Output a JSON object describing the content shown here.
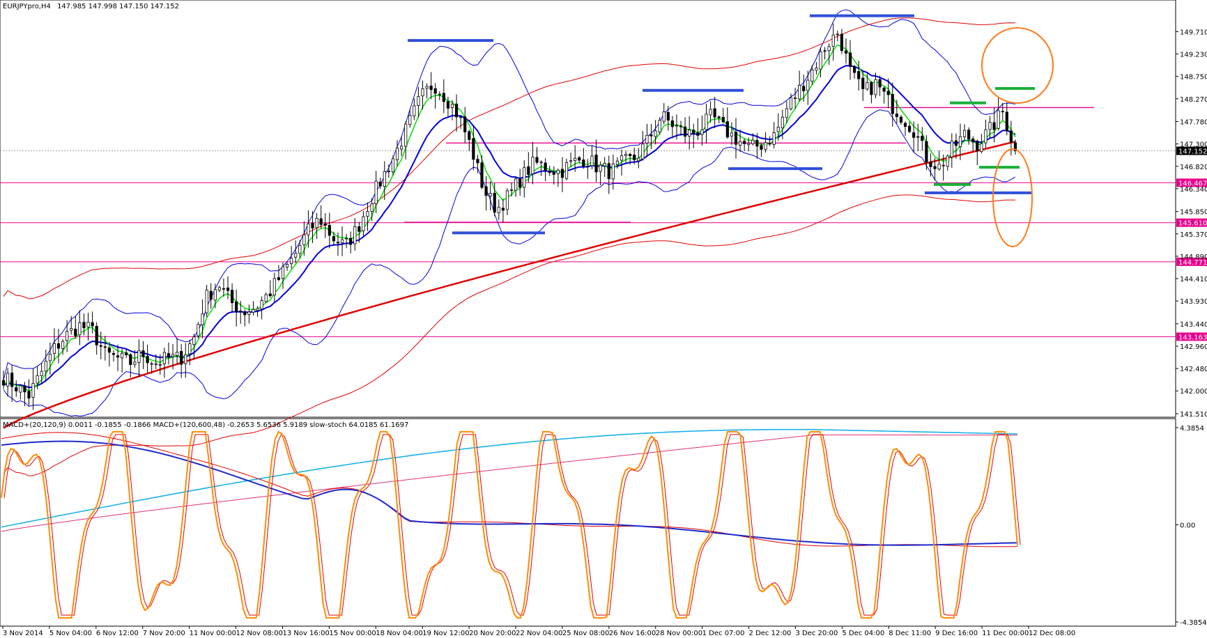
{
  "chart_data": {
    "type": "candlestick",
    "header": {
      "symbol": "EURJPYpro,H4",
      "ohlc": "147.985 147.998 147.150 147.152"
    },
    "price_axis": {
      "ylim": [
        141.51,
        150.06
      ],
      "ticks": [
        "149.710",
        "149.230",
        "148.750",
        "148.270",
        "147.780",
        "147.300",
        "146.820",
        "146.340",
        "145.850",
        "145.370",
        "144.890",
        "144.410",
        "143.930",
        "143.440",
        "142.960",
        "142.480",
        "142.000",
        "141.510"
      ],
      "tick_values": [
        149.71,
        149.23,
        148.75,
        148.27,
        147.78,
        147.3,
        146.82,
        146.34,
        145.85,
        145.37,
        144.89,
        144.41,
        143.93,
        143.44,
        142.96,
        142.48,
        142.0,
        141.51
      ]
    },
    "current_price": "147.152",
    "current_price_value": 147.152,
    "horizontal_levels": [
      {
        "label": "146.467",
        "value": 146.467,
        "color": "#e8008c"
      },
      {
        "label": "145.610",
        "value": 145.61,
        "color": "#e8008c"
      },
      {
        "label": "144.771",
        "value": 144.771,
        "color": "#e8008c"
      },
      {
        "label": "143.163",
        "value": 143.163,
        "color": "#e8008c"
      }
    ],
    "time_axis": [
      "3 Nov 2014",
      "5 Nov 04:00",
      "6 Nov 12:00",
      "7 Nov 20:00",
      "11 Nov 00:00",
      "12 Nov 08:00",
      "13 Nov 16:00",
      "15 Nov 00:00",
      "18 Nov 04:00",
      "19 Nov 12:00",
      "20 Nov 20:00",
      "22 Nov 04:00",
      "25 Nov 08:00",
      "26 Nov 16:00",
      "28 Nov 00:00",
      "1 Dec 07:00",
      "2 Dec 12:00",
      "3 Dec 20:00",
      "5 Dec 04:00",
      "8 Dec 11:00",
      "9 Dec 16:00",
      "11 Dec 00:00",
      "12 Dec 08:00"
    ],
    "close_path": [
      142.3,
      142.1,
      141.9,
      142.4,
      142.9,
      143.2,
      143.4,
      143.3,
      142.8,
      142.7,
      142.6,
      142.8,
      142.6,
      142.7,
      142.7,
      143.1,
      144.0,
      144.3,
      143.9,
      143.7,
      143.8,
      144.1,
      144.5,
      144.9,
      145.4,
      145.7,
      145.3,
      145.1,
      145.5,
      146.1,
      146.6,
      147.1,
      147.7,
      148.3,
      148.6,
      148.3,
      147.9,
      147.2,
      146.3,
      145.9,
      146.2,
      146.6,
      146.9,
      146.8,
      146.7,
      146.9,
      147.0,
      146.8,
      146.7,
      146.9,
      147.0,
      147.4,
      147.9,
      147.7,
      147.5,
      147.6,
      147.9,
      147.6,
      147.4,
      147.2,
      147.3,
      147.5,
      148.1,
      148.5,
      148.9,
      149.4,
      149.7,
      148.8,
      148.4,
      148.6,
      148.2,
      147.9,
      147.6,
      147.0,
      146.8,
      147.2,
      147.5,
      147.3,
      147.6,
      148.0,
      147.152
    ],
    "macd_panel": {
      "label": "MACD+(20,120,9) 0.0011 -0.1855 -0.1866  MACD+(120,600,48) -0.2653 5.6536 5.9189  slow-stoch 64.0185 61.1697",
      "ticks": [
        "4.3854",
        "0.00",
        "-4.3854"
      ],
      "tick_values": [
        4.3854,
        0,
        -4.3854
      ]
    },
    "colors": {
      "bull": "#ffffff",
      "bear": "#000000",
      "ema_fast": "#00e000",
      "ema_mid": "#0000e0",
      "ema_slow": "#e00000",
      "bollinger_upper": "#e00000",
      "bollinger_inner": "#0000e0",
      "levels": "#e8008c",
      "zones": "#2f4fd8",
      "green_marks": "#18b038",
      "circles": "#ff7a1a",
      "stoch": "#ff8c00",
      "macd_long": "#1ab2e8",
      "macd_long_signal": "#e0307a"
    }
  }
}
